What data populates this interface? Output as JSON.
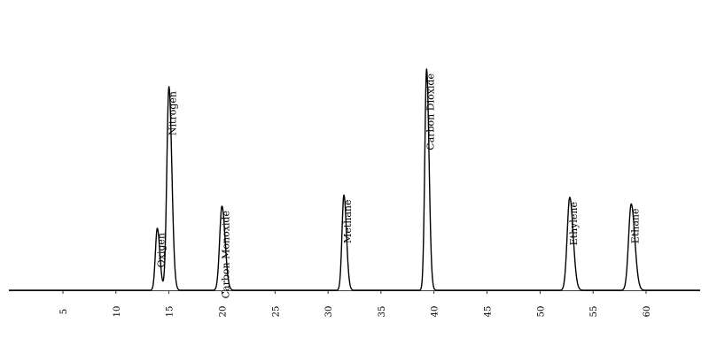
{
  "chart_data": {
    "type": "line",
    "title": "",
    "xlabel": "",
    "ylabel": "",
    "xlim": [
      0,
      65
    ],
    "ylim": [
      0,
      100
    ],
    "grid": false,
    "x_ticks": [
      5,
      10,
      15,
      20,
      25,
      30,
      35,
      40,
      45,
      50,
      55,
      60
    ],
    "x_tick_labels": [
      "5",
      "10",
      "15",
      "20",
      "25",
      "30",
      "35",
      "40",
      "45",
      "50",
      "55",
      "60"
    ],
    "peaks": [
      {
        "label": "Oxigen",
        "x": 13.9,
        "height": 28,
        "width": 0.18
      },
      {
        "label": "Nitrogen",
        "x": 15.0,
        "height": 92,
        "width": 0.2
      },
      {
        "label": "Carbon Monoxide",
        "x": 20.0,
        "height": 38,
        "width": 0.22
      },
      {
        "label": "Methane",
        "x": 31.5,
        "height": 43,
        "width": 0.18
      },
      {
        "label": "Carbon Dioxide",
        "x": 39.3,
        "height": 100,
        "width": 0.17
      },
      {
        "label": "Ethylene",
        "x": 52.8,
        "height": 42,
        "width": 0.24
      },
      {
        "label": "Ethane",
        "x": 58.6,
        "height": 39,
        "width": 0.25
      }
    ],
    "line_color": "#000000"
  }
}
